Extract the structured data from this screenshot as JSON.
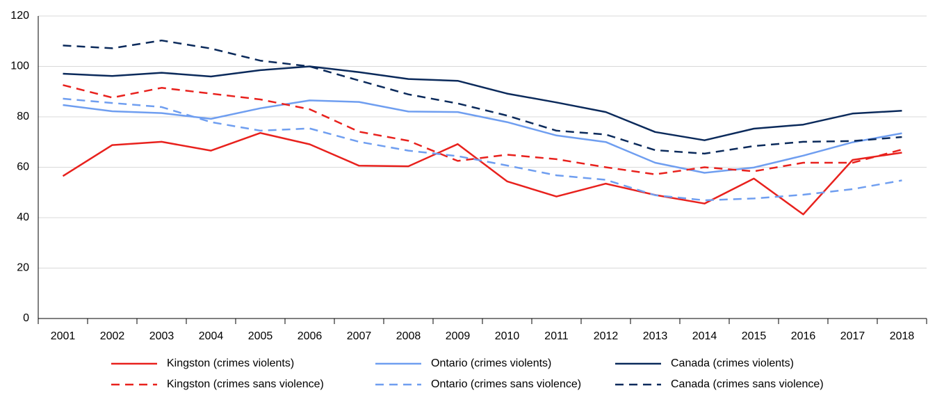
{
  "chart_data": {
    "type": "line",
    "categories": [
      "2001",
      "2002",
      "2003",
      "2004",
      "2005",
      "2006",
      "2007",
      "2008",
      "2009",
      "2010",
      "2011",
      "2012",
      "2013",
      "2014",
      "2015",
      "2016",
      "2017",
      "2018"
    ],
    "ylim": [
      0,
      120
    ],
    "yticks": [
      0,
      20,
      40,
      60,
      80,
      100,
      120
    ],
    "grid": true,
    "series": [
      {
        "name": "Kingston (crimes violents)",
        "color": "#e8211d",
        "dashed": false,
        "values": [
          56.5,
          68.8,
          70.1,
          66.6,
          73.6,
          69.1,
          60.6,
          60.4,
          69.2,
          54.4,
          48.4,
          53.5,
          49,
          45.6,
          55.5,
          41.3,
          62.9,
          65.8
        ]
      },
      {
        "name": "Ontario (crimes violents)",
        "color": "#6f9ef0",
        "dashed": false,
        "values": [
          84.7,
          82.2,
          81.5,
          79.2,
          83.4,
          86.5,
          85.9,
          82.1,
          81.9,
          77.9,
          72.6,
          70,
          61.8,
          57.8,
          59.9,
          64.6,
          69.9,
          73.5
        ]
      },
      {
        "name": "Canada (crimes violents)",
        "color": "#0b2a5b",
        "dashed": false,
        "values": [
          97.1,
          96.2,
          97.5,
          96,
          98.5,
          100,
          97.7,
          95,
          94.3,
          89.2,
          85.7,
          81.9,
          74,
          70.7,
          75.3,
          76.9,
          81.3,
          82.4
        ]
      },
      {
        "name": "Kingston (crimes sans violence)",
        "color": "#e8211d",
        "dashed": true,
        "values": [
          92.6,
          87.6,
          91.5,
          89.2,
          86.9,
          83,
          74.1,
          70.5,
          62.5,
          65,
          63.2,
          60,
          57.2,
          60,
          58.4,
          61.8,
          61.8,
          67
        ]
      },
      {
        "name": "Ontario (crimes sans violence)",
        "color": "#6f9ef0",
        "dashed": true,
        "values": [
          87.2,
          85.5,
          83.9,
          77.9,
          74.5,
          75.4,
          70.1,
          66.6,
          64.4,
          60.7,
          56.8,
          55,
          48.9,
          46.9,
          47.6,
          49.1,
          51.3,
          54.8
        ]
      },
      {
        "name": "Canada (crimes sans violence)",
        "color": "#0b2a5b",
        "dashed": true,
        "values": [
          108.3,
          107.2,
          110.3,
          107.1,
          102.3,
          100,
          94.4,
          88.9,
          85.3,
          80.5,
          74.5,
          73,
          66.8,
          65.4,
          68.4,
          70.1,
          70.4,
          72
        ]
      }
    ]
  }
}
